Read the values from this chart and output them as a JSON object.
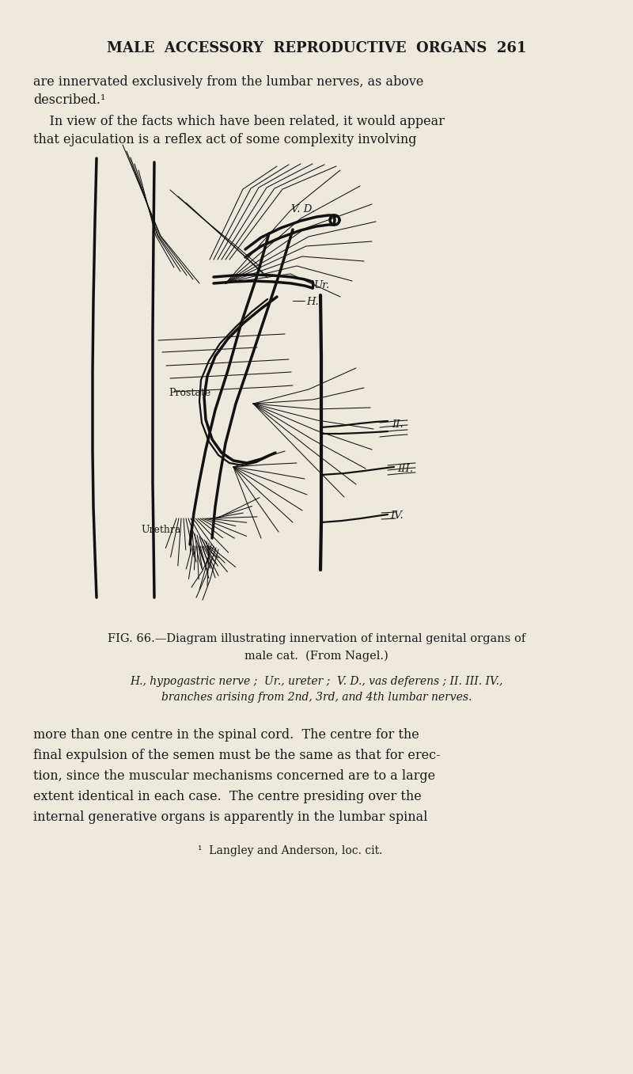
{
  "bg_color": "#ede9dc",
  "text_color": "#1a1a1a",
  "page_header": "MALE  ACCESSORY  REPRODUCTIVE  ORGANS  261",
  "para1_line1": "are innervated exclusively from the lumbar nerves, as above",
  "para1_line2": "described.¹",
  "para2_line1": "    In view of the facts which have been related, it would appear",
  "para2_line2": "that ejaculation is a reflex act of some complexity involving",
  "fig_caption1": "FIG. 66.—Diagram illustrating innervation of internal genital organs of",
  "fig_caption2": "male cat.  (From Nagel.)",
  "fig_legend1": "H., hypogastric nerve ;  Ur., ureter ;  V. D., vas deferens ; II. III. IV.,",
  "fig_legend2": "branches arising from 2nd, 3rd, and 4th lumbar nerves.",
  "para3_line1": "more than one centre in the spinal cord.  The centre for the",
  "para3_line2": "final expulsion of the semen must be the same as that for erec-",
  "para3_line3": "tion, since the muscular mechanisms concerned are to a large",
  "para3_line4": "extent identical in each case.  The centre presiding over the",
  "para3_line5": "internal generative organs is apparently in the lumbar spinal",
  "footnote": "¹  Langley and Anderson, loc. cit."
}
